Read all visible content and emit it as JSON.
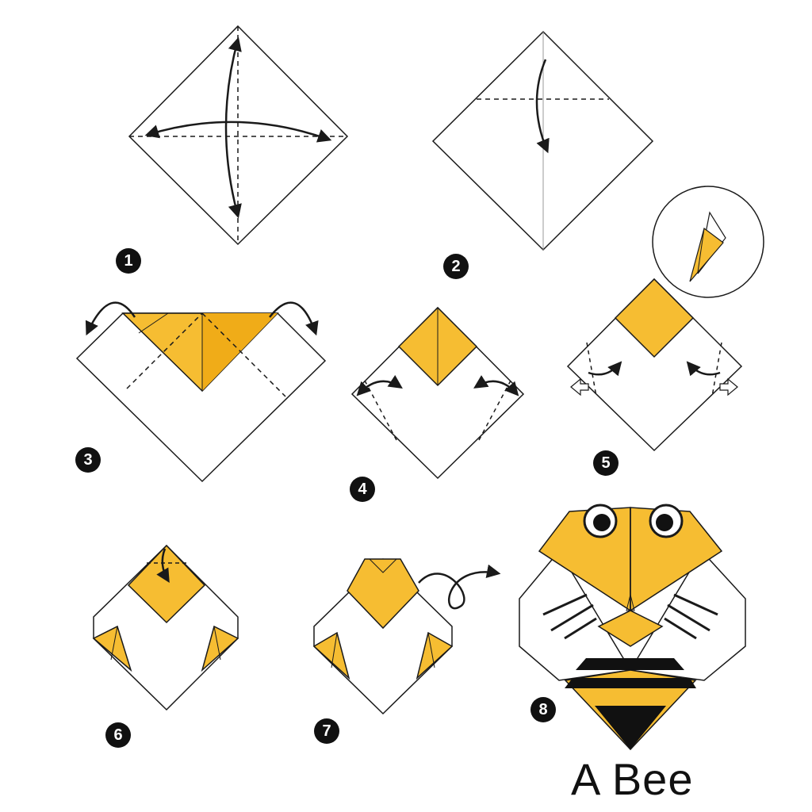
{
  "colors": {
    "paper": "#ffffff",
    "fold": "#f6bd32",
    "line": "#1a1a1a",
    "crease": "#444444"
  },
  "steps": [
    "1",
    "2",
    "3",
    "4",
    "5",
    "6",
    "7",
    "8"
  ],
  "title": "A Bee"
}
